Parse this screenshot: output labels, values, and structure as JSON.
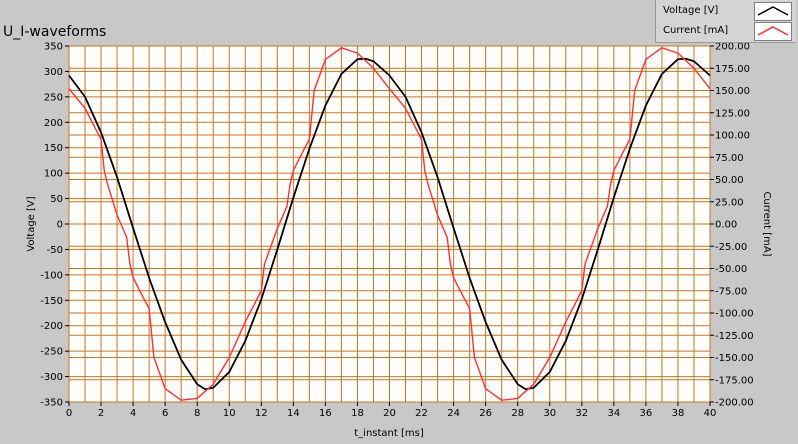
{
  "chart_data": {
    "type": "line",
    "title": "U_I-waveforms",
    "xlabel": "t_instant [ms]",
    "ylabel_left": "Voltage [V]",
    "ylabel_right": "Current [mA]",
    "xlim": [
      0,
      40
    ],
    "ylim_left": [
      -350,
      350
    ],
    "ylim_right": [
      -200,
      200
    ],
    "x_ticks": [
      0,
      2,
      4,
      6,
      8,
      10,
      12,
      14,
      16,
      18,
      20,
      22,
      24,
      26,
      28,
      30,
      32,
      34,
      36,
      38,
      40
    ],
    "y_left_ticks": [
      350,
      300,
      250,
      200,
      150,
      100,
      50,
      0,
      -50,
      -100,
      -150,
      -200,
      -250,
      -300,
      -350
    ],
    "y_right_ticks": [
      "200.00",
      "175.00",
      "150.00",
      "125.00",
      "100.00",
      "75.00",
      "50.00",
      "25.00",
      "0.00",
      "-25.00",
      "-50.00",
      "-75.00",
      "-100.00",
      "-125.00",
      "-150.00",
      "-175.00",
      "-200.00"
    ],
    "grid": true,
    "legend_position": "top-right",
    "series": [
      {
        "name": "Voltage [V]",
        "axis": "left",
        "color": "#000000",
        "x": [
          0,
          1,
          2,
          3,
          4,
          5,
          6,
          7,
          8,
          8.5,
          9,
          10,
          11,
          12,
          13,
          14,
          15,
          16,
          17,
          18,
          18.5,
          19,
          20,
          21,
          22,
          23,
          24,
          25,
          26,
          27,
          28,
          28.5,
          29,
          30,
          31,
          32,
          33,
          34,
          35,
          36,
          37,
          38,
          38.5,
          39,
          40
        ],
        "values": [
          292,
          250,
          180,
          92,
          -8,
          -106,
          -193,
          -267,
          -315,
          -325,
          -322,
          -291,
          -230,
          -148,
          -50,
          52,
          148,
          233,
          295,
          324,
          325,
          320,
          292,
          250,
          180,
          92,
          -8,
          -106,
          -193,
          -267,
          -315,
          -325,
          -322,
          -291,
          -230,
          -148,
          -50,
          52,
          148,
          233,
          295,
          324,
          325,
          320,
          292
        ]
      },
      {
        "name": "Current [mA]",
        "axis": "right",
        "color": "#ff3030",
        "x": [
          0,
          1,
          2,
          2.2,
          2.4,
          3,
          3.6,
          3.8,
          4,
          4.5,
          5,
          5.3,
          6,
          7,
          8,
          9,
          10,
          11,
          12,
          12.2,
          12.4,
          13,
          13.6,
          13.8,
          14,
          14.5,
          15,
          15.3,
          16,
          17,
          18,
          19,
          20,
          21,
          22,
          22.2,
          22.4,
          23,
          23.6,
          23.8,
          24,
          24.5,
          25,
          25.3,
          26,
          27,
          28,
          29,
          30,
          31,
          32,
          32.2,
          32.4,
          33,
          33.6,
          33.8,
          34,
          34.5,
          35,
          35.3,
          36,
          37,
          38,
          39,
          40
        ],
        "values": [
          152,
          130,
          95,
          60,
          45,
          10,
          -15,
          -45,
          -60,
          -78,
          -95,
          -150,
          -185,
          -198,
          -196,
          -180,
          -150,
          -110,
          -75,
          -45,
          -35,
          -5,
          20,
          45,
          60,
          78,
          95,
          150,
          185,
          198,
          192,
          175,
          152,
          130,
          95,
          60,
          45,
          10,
          -15,
          -45,
          -60,
          -78,
          -95,
          -150,
          -185,
          -198,
          -196,
          -180,
          -150,
          -110,
          -75,
          -45,
          -35,
          -5,
          20,
          45,
          60,
          78,
          95,
          150,
          185,
          198,
          192,
          175,
          152
        ]
      }
    ]
  }
}
